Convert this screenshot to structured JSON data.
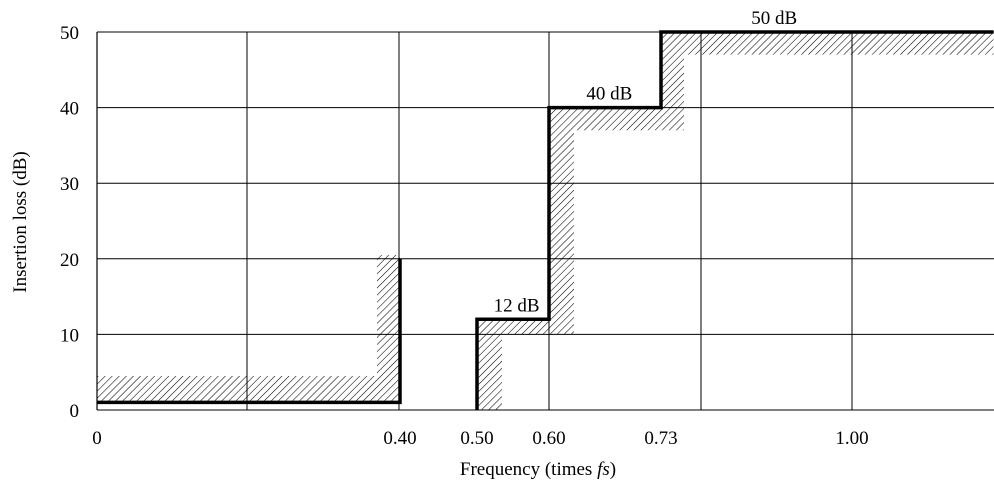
{
  "chart_data": {
    "type": "line",
    "title": "",
    "xlabel": "Frequency (times ",
    "xlabel_italic": "fs",
    "xlabel_suffix": ")",
    "ylabel": "Insertion loss (dB)",
    "ylim": [
      0,
      50
    ],
    "grid": true,
    "x_ticks": [
      {
        "label": "0",
        "value": 0
      },
      {
        "label": "0.40",
        "value": 0.4
      },
      {
        "label": "0.50",
        "value": 0.5
      },
      {
        "label": "0.60",
        "value": 0.6
      },
      {
        "label": "0.73",
        "value": 0.73
      },
      {
        "label": "1.00",
        "value": 1.0
      }
    ],
    "y_ticks": [
      0,
      10,
      20,
      30,
      40,
      50
    ],
    "series": [
      {
        "segments": [
          [
            [
              0,
              1
            ],
            [
              0.4,
              1
            ],
            [
              0.4,
              20
            ]
          ],
          [
            [
              0.5,
              0
            ],
            [
              0.5,
              12
            ],
            [
              0.6,
              12
            ],
            [
              0.6,
              40
            ],
            [
              0.73,
              40
            ],
            [
              0.73,
              50
            ],
            [
              1.2,
              50
            ]
          ]
        ]
      }
    ],
    "annotations": [
      {
        "text": "12 dB",
        "x": 0.555,
        "y": 12
      },
      {
        "text": "40 dB",
        "x": 0.67,
        "y": 40
      },
      {
        "text": "50 dB",
        "x": 0.89,
        "y": 50
      }
    ]
  }
}
